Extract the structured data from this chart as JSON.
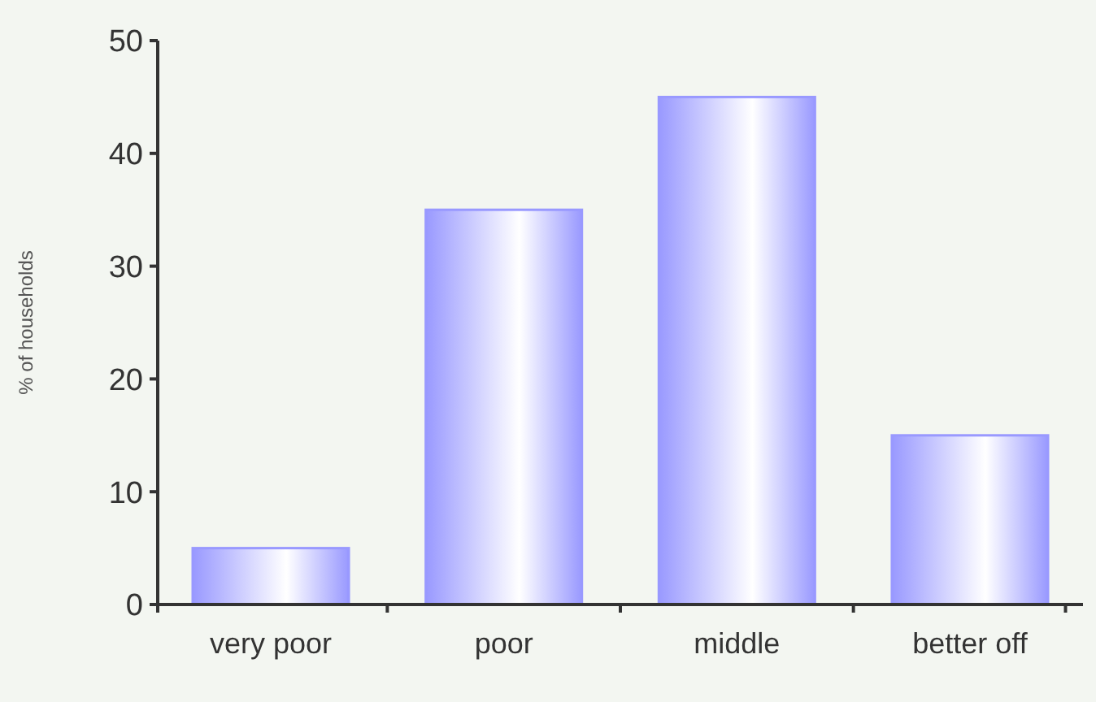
{
  "chart_data": {
    "type": "bar",
    "ylabel": "% of households",
    "categories": [
      "very poor",
      "poor",
      "middle",
      "better off"
    ],
    "values": [
      5,
      35,
      45,
      15
    ],
    "color": "#9999ff",
    "ylim": [
      0,
      50
    ],
    "yticks": [
      0,
      10,
      20,
      30,
      40,
      50
    ],
    "grid": false
  }
}
